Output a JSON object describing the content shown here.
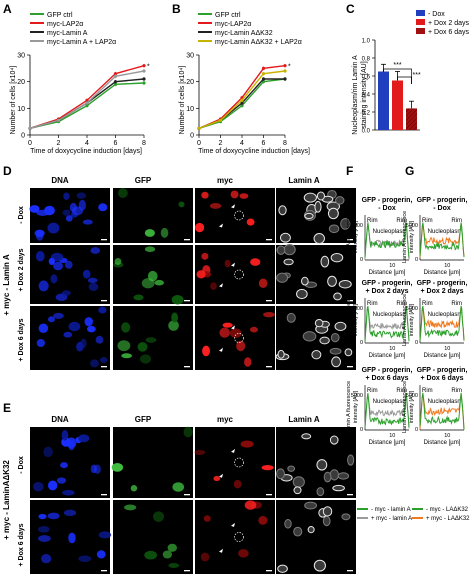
{
  "panels": {
    "A": "A",
    "B": "B",
    "C": "C",
    "D": "D",
    "E": "E",
    "F": "F",
    "G": "G"
  },
  "colors": {
    "green": "#2ca02c",
    "red": "#e31a1c",
    "black": "#222222",
    "gray": "#9a9a9a",
    "blue": "#1f3fbf",
    "darkred": "#a01010",
    "orange": "#f07a20"
  },
  "chart_a": {
    "legend": [
      "GFP ctrl",
      "myc-LAP2α",
      "myc-Lamin A",
      "myc-Lamin A + LAP2α"
    ],
    "ylabel": "Number of cells [x10⁴]",
    "xlabel": "Time of doxycycline induction [days]",
    "x_ticks": [
      "0",
      "2",
      "4",
      "6",
      "8"
    ],
    "y_ticks": [
      "0",
      "10",
      "20",
      "30"
    ],
    "star": "*"
  },
  "chart_b": {
    "legend": [
      "GFP ctrl",
      "myc-LAP2α",
      "myc-Lamin AΔK32",
      "myc-Lamin AΔK32 + LAP2α"
    ],
    "ylabel": "Number of cells [x10⁴]",
    "xlabel": "Time of doxycycline induction [days]",
    "x_ticks": [
      "0",
      "2",
      "4",
      "6",
      "8"
    ],
    "y_ticks": [
      "0",
      "10",
      "20",
      "30"
    ],
    "star": "*"
  },
  "chart_c": {
    "legend": [
      "- Dox",
      "+ Dox 2 days",
      "+ Dox 6 days"
    ],
    "ylabel_1": "Nucleoplasm/rim Lamin A",
    "ylabel_2": "staining intensity [AU]",
    "y_ticks": [
      "0.0",
      "0.2",
      "0.4",
      "0.6",
      "0.8",
      "1.0"
    ],
    "sig1": "***",
    "sig2": "***"
  },
  "micro_d": {
    "headers": [
      "DNA",
      "GFP",
      "myc",
      "Lamin A"
    ],
    "side_label": "+ myc - Lamin A",
    "rows": [
      "- Dox",
      "+ Dox 2 days",
      "+ Dox 6 days"
    ]
  },
  "micro_e": {
    "headers": [
      "DNA",
      "GFP",
      "myc",
      "Lamin A"
    ],
    "side_label": "+ myc - LaminAΔK32",
    "rows": [
      "- Dox",
      "+ Dox 6 days"
    ]
  },
  "profiles": {
    "ylabel_1": "Lamin A fluorescence",
    "ylabel_2": "intensity [AU]",
    "xlabel": "Distance [µm]",
    "x_tick": "10",
    "y_tick": "5000",
    "zero": "0",
    "rim": "Rim",
    "nucleoplasm": "Nucleoplasm",
    "f_titles": [
      [
        "GFP - progerin,",
        "- Dox"
      ],
      [
        "GFP - progerin,",
        "+ Dox 2 days"
      ],
      [
        "GFP - progerin,",
        "+ Dox 6 days"
      ]
    ],
    "g_titles": [
      [
        "GFP - progerin,",
        "- Dox"
      ],
      [
        "GFP - progerin,",
        "+ Dox 2 days"
      ],
      [
        "GFP - progerin,",
        "+ Dox 6 days"
      ]
    ],
    "f_legend": [
      "- myc - lamin A",
      "+ myc - lamin A"
    ],
    "g_legend": [
      "- myc - LAΔK32",
      "+ myc - LAΔK32"
    ]
  },
  "chart_data": [
    {
      "type": "line",
      "x": [
        0,
        2,
        4,
        6,
        8
      ],
      "series": [
        {
          "name": "GFP ctrl",
          "values": [
            2.5,
            5,
            11,
            19,
            19.5
          ]
        },
        {
          "name": "myc-LAP2α",
          "values": [
            2.5,
            6,
            13,
            23,
            26
          ]
        },
        {
          "name": "myc-Lamin A",
          "values": [
            2.5,
            5.5,
            12,
            20,
            21
          ]
        },
        {
          "name": "myc-Lamin A + LAP2α",
          "values": [
            2.5,
            5.5,
            12,
            22,
            24
          ]
        }
      ],
      "xlabel": "Time of doxycycline induction [days]",
      "ylabel": "Number of cells [x10⁴]",
      "ylim": [
        0,
        30
      ]
    },
    {
      "type": "line",
      "x": [
        0,
        2,
        4,
        6,
        8
      ],
      "series": [
        {
          "name": "GFP ctrl",
          "values": [
            2.5,
            5,
            11,
            20,
            21
          ]
        },
        {
          "name": "myc-LAP2α",
          "values": [
            2.5,
            6,
            14,
            25,
            26
          ]
        },
        {
          "name": "myc-Lamin AΔK32",
          "values": [
            2.5,
            5.5,
            12,
            21,
            21
          ]
        },
        {
          "name": "myc-Lamin AΔK32 + LAP2α",
          "values": [
            2.5,
            5.5,
            13,
            23,
            24
          ]
        }
      ],
      "xlabel": "Time of doxycycline induction [days]",
      "ylabel": "Number of cells [x10⁴]",
      "ylim": [
        0,
        30
      ]
    },
    {
      "type": "bar",
      "categories": [
        "- Dox",
        "+ Dox 2 days",
        "+ Dox 6 days"
      ],
      "values": [
        0.65,
        0.55,
        0.24
      ],
      "errors": [
        0.08,
        0.1,
        0.08
      ],
      "ylabel": "Nucleoplasm/rim Lamin A staining intensity [AU]",
      "ylim": [
        0,
        1.0
      ]
    }
  ]
}
